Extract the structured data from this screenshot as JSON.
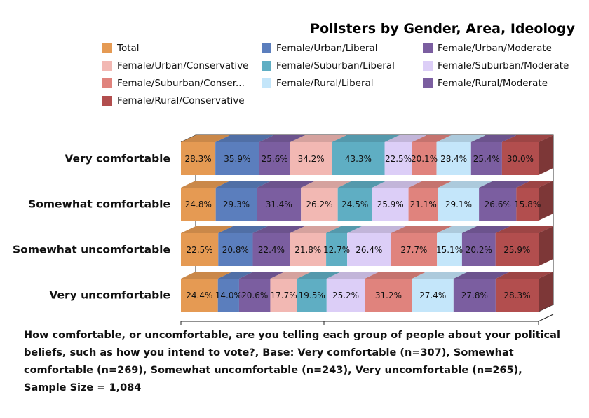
{
  "chart_data": {
    "type": "bar",
    "orientation": "horizontal",
    "stacked": true,
    "normalized_100": true,
    "3d": true,
    "title": "Pollsters by Gender, Area, Ideology",
    "categories": [
      "Very comfortable",
      "Somewhat comfortable",
      "Somewhat uncomfortable",
      "Very uncomfortable"
    ],
    "series": [
      {
        "name": "Total",
        "color": "#E59A53",
        "values": [
          28.3,
          24.8,
          22.5,
          24.4
        ]
      },
      {
        "name": "Female/Urban/Liberal",
        "color": "#5B7EBD",
        "values": [
          35.9,
          29.3,
          20.8,
          14.0
        ]
      },
      {
        "name": "Female/Urban/Moderate",
        "color": "#7B5EA0",
        "values": [
          25.6,
          31.4,
          22.4,
          20.6
        ]
      },
      {
        "name": "Female/Urban/Conservative",
        "color": "#F2B8B3",
        "values": [
          34.2,
          26.2,
          21.8,
          17.7
        ]
      },
      {
        "name": "Female/Suburban/Liberal",
        "color": "#5FAEC3",
        "values": [
          43.3,
          24.5,
          12.7,
          19.5
        ]
      },
      {
        "name": "Female/Suburban/Moderate",
        "color": "#DCCEF7",
        "values": [
          22.5,
          25.9,
          26.4,
          25.2
        ]
      },
      {
        "name": "Female/Suburban/Conser...",
        "color": "#E0837D",
        "values": [
          20.1,
          21.1,
          27.7,
          31.2
        ]
      },
      {
        "name": "Female/Rural/Liberal",
        "color": "#C4E6FA",
        "values": [
          28.4,
          29.1,
          15.1,
          27.4
        ]
      },
      {
        "name": "Female/Rural/Moderate",
        "color": "#7B5EA0",
        "values": [
          25.4,
          26.6,
          20.2,
          27.8
        ]
      },
      {
        "name": "Female/Rural/Conservative",
        "color": "#B24E4E",
        "values": [
          30.0,
          15.8,
          25.9,
          28.3
        ]
      }
    ],
    "legend_position": "top",
    "grid": false
  },
  "caption": [
    "How comfortable, or uncomfortable, are you telling each group of people about your political",
    "beliefs, such as how you intend to vote?, Base: Very comfortable (n=307), Somewhat",
    "comfortable (n=269), Somewhat uncomfortable (n=243), Very uncomfortable (n=265),",
    "Sample Size = 1,084"
  ]
}
